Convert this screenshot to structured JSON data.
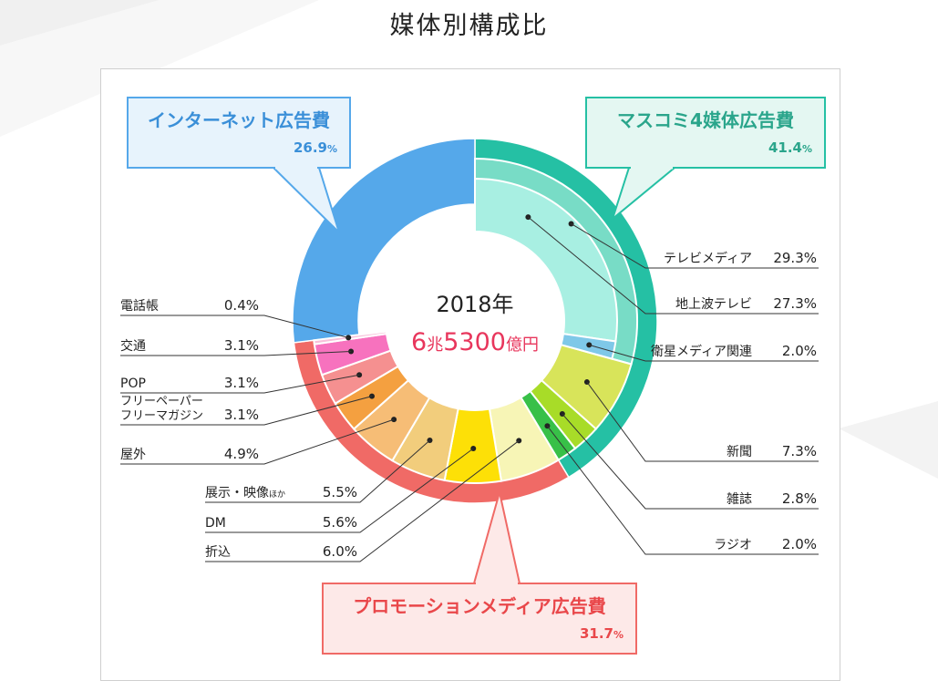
{
  "page": {
    "title": "媒体別構成比"
  },
  "chart_data": {
    "type": "pie",
    "center": {
      "year_label": "2018年",
      "total_number": "6",
      "total_unit1": "兆",
      "total_number2": "5300",
      "total_unit2": "億円"
    },
    "categories": [
      {
        "name": "マスコミ4媒体広告費",
        "value": 41.4,
        "value_label": "41.4",
        "color": "#25c0a4",
        "border": "#25c0a4",
        "bg": "#e4f7f2",
        "text_color": "#2aa58b"
      },
      {
        "name": "プロモーションメディア広告費",
        "value": 31.7,
        "value_label": "31.7",
        "color": "#f06a66",
        "border": "#f06a66",
        "bg": "#fde9e8",
        "text_color": "#e9474a"
      },
      {
        "name": "インターネット広告費",
        "value": 26.9,
        "value_label": "26.9",
        "color": "#55a8ea",
        "border": "#55a8ea",
        "bg": "#e7f3fc",
        "text_color": "#3a8fd8"
      }
    ],
    "subcategories": [
      {
        "name": "テレビメディア",
        "value": 29.3,
        "value_label": "29.3",
        "color": "#78dcc6"
      },
      {
        "name": "新聞",
        "value": 7.3,
        "value_label": "7.3",
        "color": "#d8e45a"
      },
      {
        "name": "雑誌",
        "value": 2.8,
        "value_label": "2.8",
        "color": "#a8dc28"
      },
      {
        "name": "ラジオ",
        "value": 2.0,
        "value_label": "2.0",
        "color": "#38c048"
      },
      {
        "name": "折込",
        "value": 6.0,
        "value_label": "6.0",
        "color": "#f7f5b6"
      },
      {
        "name": "DM",
        "value": 5.6,
        "value_label": "5.6",
        "color": "#fde007"
      },
      {
        "name": "展示・映像",
        "suffix": "ほか",
        "value": 5.5,
        "value_label": "5.5",
        "color": "#f2cd7c"
      },
      {
        "name": "屋外",
        "value": 4.9,
        "value_label": "4.9",
        "color": "#f6bd76"
      },
      {
        "name": "フリーペーパー",
        "name2": "フリーマガジン",
        "value": 3.1,
        "value_label": "3.1",
        "color": "#f4a040"
      },
      {
        "name": "POP",
        "value": 3.1,
        "value_label": "3.1",
        "color": "#f59090"
      },
      {
        "name": "交通",
        "value": 3.1,
        "value_label": "3.1",
        "color": "#f772be"
      },
      {
        "name": "電話帳",
        "value": 0.4,
        "value_label": "0.4",
        "color": "#f8c0da"
      }
    ],
    "tv_breakdown": [
      {
        "name": "地上波テレビ",
        "value": 27.3,
        "value_label": "27.3",
        "color": "#a8efe2"
      },
      {
        "name": "衛星メディア関連",
        "value": 2.0,
        "value_label": "2.0",
        "color": "#7fc8e8"
      }
    ],
    "unit": "%"
  }
}
